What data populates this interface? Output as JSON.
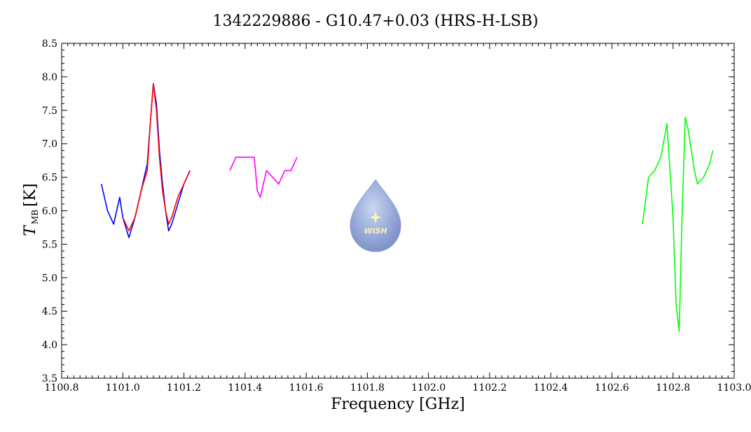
{
  "chart_data": {
    "type": "line",
    "title": "1342229886 - G10.47+0.03 (HRS-H-LSB)",
    "xlabel": "Frequency [GHz]",
    "ylabel_symbol": "T",
    "ylabel_subscript": "MB",
    "ylabel_unit": "[K]",
    "xlim": [
      1100.8,
      1103.0
    ],
    "ylim": [
      3.5,
      8.5
    ],
    "x_ticks": [
      "1100.8",
      "1101.0",
      "1101.2",
      "1101.4",
      "1101.6",
      "1101.8",
      "1102.0",
      "1102.2",
      "1102.4",
      "1102.6",
      "1102.8",
      "1103.0"
    ],
    "y_ticks": [
      "3.5",
      "4.0",
      "4.5",
      "5.0",
      "5.5",
      "6.0",
      "6.5",
      "7.0",
      "7.5",
      "8.0",
      "8.5"
    ],
    "grid": false,
    "logo_text": "WISH",
    "series": [
      {
        "color": "#0000ff",
        "x": [
          1100.93,
          1100.95,
          1100.97,
          1100.99,
          1101.0,
          1101.02,
          1101.04,
          1101.06,
          1101.08,
          1101.09,
          1101.1,
          1101.11,
          1101.12,
          1101.13,
          1101.14,
          1101.15,
          1101.16,
          1101.18,
          1101.2,
          1101.22
        ],
        "y": [
          6.4,
          6.0,
          5.8,
          6.2,
          5.9,
          5.6,
          5.9,
          6.3,
          6.7,
          7.3,
          7.9,
          7.6,
          6.9,
          6.4,
          6.0,
          5.7,
          5.8,
          6.1,
          6.4,
          6.6
        ]
      },
      {
        "color": "#ff0000",
        "x": [
          1101.0,
          1101.02,
          1101.04,
          1101.06,
          1101.08,
          1101.09,
          1101.1,
          1101.11,
          1101.12,
          1101.13,
          1101.14,
          1101.15,
          1101.16,
          1101.18,
          1101.2,
          1101.22
        ],
        "y": [
          5.9,
          5.7,
          5.9,
          6.3,
          6.6,
          7.3,
          7.9,
          7.5,
          6.8,
          6.3,
          6.0,
          5.8,
          5.9,
          6.2,
          6.4,
          6.6
        ]
      },
      {
        "color": "#ff00ff",
        "x": [
          1101.35,
          1101.37,
          1101.39,
          1101.41,
          1101.43,
          1101.44,
          1101.45,
          1101.47,
          1101.49,
          1101.51,
          1101.53,
          1101.55,
          1101.57
        ],
        "y": [
          6.6,
          6.8,
          6.8,
          6.8,
          6.8,
          6.3,
          6.2,
          6.6,
          6.5,
          6.4,
          6.6,
          6.6,
          6.8
        ]
      },
      {
        "color": "#00ff00",
        "x": [
          1102.7,
          1102.72,
          1102.74,
          1102.76,
          1102.78,
          1102.79,
          1102.8,
          1102.81,
          1102.82,
          1102.83,
          1102.84,
          1102.85,
          1102.86,
          1102.87,
          1102.88,
          1102.9,
          1102.92,
          1102.93
        ],
        "y": [
          5.8,
          6.5,
          6.6,
          6.8,
          7.3,
          6.6,
          5.9,
          4.6,
          4.2,
          6.0,
          7.4,
          7.2,
          6.9,
          6.6,
          6.4,
          6.5,
          6.7,
          6.9
        ]
      }
    ]
  }
}
